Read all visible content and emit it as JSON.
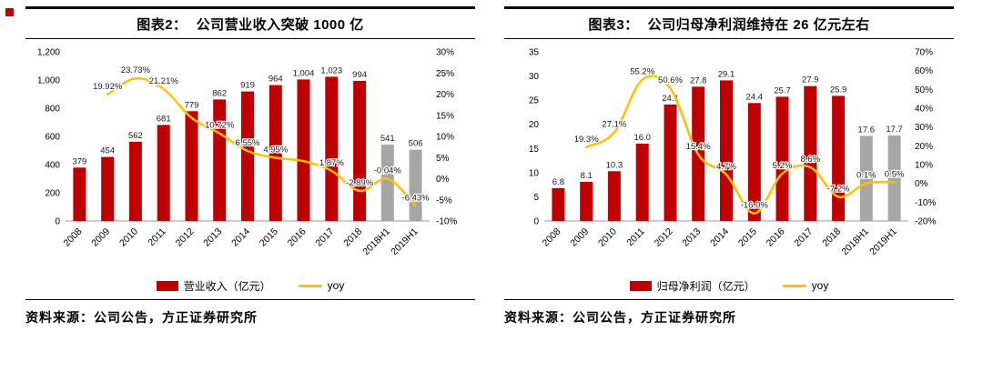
{
  "page": {
    "background": "#ffffff",
    "corner_marker_color": "#c00000"
  },
  "colors": {
    "bar_red": "#c00000",
    "bar_gray": "#a6a6a6",
    "line_yellow": "#ffc000",
    "axis_line": "#9a9a9a"
  },
  "panels": [
    {
      "title_prefix": "图表2：",
      "title": "公司营业收入突破 1000 亿",
      "legend": [
        {
          "swatch": "bar",
          "label": "营业收入（亿元）"
        },
        {
          "swatch": "line",
          "label": "yoy"
        }
      ],
      "source": "资料来源：公司公告，方正证券研究所"
    },
    {
      "title_prefix": "图表3：",
      "title": "公司归母净利润维持在 26 亿元左右",
      "legend": [
        {
          "swatch": "bar",
          "label": "归母净利润（亿元）"
        },
        {
          "swatch": "line",
          "label": "yoy"
        }
      ],
      "source": "资料来源：公司公告，方正证券研究所"
    }
  ],
  "chart_data": [
    {
      "type": "bar+line",
      "title": "公司营业收入突破 1000 亿",
      "categories": [
        "2008",
        "2009",
        "2010",
        "2011",
        "2012",
        "2013",
        "2014",
        "2015",
        "2016",
        "2017",
        "2018",
        "2018H1",
        "2019H1"
      ],
      "series": [
        {
          "name": "营业收入（亿元）",
          "kind": "bar",
          "axis": "left",
          "values": [
            379,
            454,
            562,
            681,
            779,
            862,
            919,
            964,
            1004,
            1023,
            994,
            541,
            506
          ],
          "value_labels": [
            "379",
            "454",
            "562",
            "681",
            "779",
            "862",
            "919",
            "964",
            "1,004",
            "1,023",
            "994",
            "541",
            "506"
          ],
          "bar_colors": [
            "#c00000",
            "#c00000",
            "#c00000",
            "#c00000",
            "#c00000",
            "#c00000",
            "#c00000",
            "#c00000",
            "#c00000",
            "#c00000",
            "#c00000",
            "#a6a6a6",
            "#a6a6a6"
          ]
        },
        {
          "name": "yoy",
          "kind": "line",
          "axis": "right",
          "line_color": "#ffc000",
          "values": [
            null,
            19.92,
            23.73,
            21.21,
            14.39,
            10.72,
            6.55,
            4.95,
            4.15,
            1.87,
            -2.89,
            -0.04,
            -6.43
          ],
          "point_labels": [
            null,
            "19.92%",
            "23.73%",
            "21.21%",
            null,
            "10.72%",
            "6.55%",
            "4.95%",
            null,
            "1.87%",
            "-2.89%",
            "-0.04%",
            "-6.43%"
          ],
          "label_positions": [
            null,
            "above",
            "above",
            "above",
            null,
            "above",
            "above",
            "above",
            null,
            "above",
            "above",
            "above",
            "above"
          ]
        }
      ],
      "left_axis": {
        "min": 0,
        "max": 1200,
        "ticks": [
          "0",
          "200",
          "400",
          "600",
          "800",
          "1,000",
          "1,200"
        ]
      },
      "right_axis": {
        "min": -10,
        "max": 30,
        "ticks": [
          "-10%",
          "-5%",
          "0%",
          "5%",
          "10%",
          "15%",
          "20%",
          "25%",
          "30%"
        ]
      },
      "legend_position": "bottom",
      "grid": false
    },
    {
      "type": "bar+line",
      "title": "公司归母净利润维持在 26 亿元左右",
      "categories": [
        "2008",
        "2009",
        "2010",
        "2011",
        "2012",
        "2013",
        "2014",
        "2015",
        "2016",
        "2017",
        "2018",
        "2018H1",
        "2019H1"
      ],
      "series": [
        {
          "name": "归母净利润（亿元）",
          "kind": "bar",
          "axis": "left",
          "values": [
            6.8,
            8.1,
            10.3,
            16.0,
            24.1,
            27.8,
            29.1,
            24.4,
            25.7,
            27.9,
            25.9,
            17.6,
            17.7
          ],
          "value_labels": [
            "6.8",
            "8.1",
            "10.3",
            "16.0",
            "24.1",
            "27.8",
            "29.1",
            "24.4",
            "25.7",
            "27.9",
            "25.9",
            "17.6",
            "17.7"
          ],
          "bar_colors": [
            "#c00000",
            "#c00000",
            "#c00000",
            "#c00000",
            "#c00000",
            "#c00000",
            "#c00000",
            "#c00000",
            "#c00000",
            "#c00000",
            "#c00000",
            "#a6a6a6",
            "#a6a6a6"
          ]
        },
        {
          "name": "yoy",
          "kind": "line",
          "axis": "right",
          "line_color": "#ffc000",
          "values": [
            null,
            19.3,
            27.1,
            55.2,
            50.6,
            15.4,
            4.7,
            -16.0,
            5.2,
            8.6,
            -7.2,
            0.1,
            0.5
          ],
          "point_labels": [
            null,
            "19.3%",
            "27.1%",
            "55.2%",
            "50.6%",
            "15.4%",
            "4.7%",
            "-16.0%",
            "5.2%",
            "8.6%",
            "-7.2%",
            "0.1%",
            "0.5%"
          ],
          "label_positions": [
            null,
            "above",
            "above",
            "above",
            "above",
            "above",
            "above",
            "above",
            "above",
            "above",
            "above",
            "above",
            "above"
          ]
        }
      ],
      "left_axis": {
        "min": 0,
        "max": 35,
        "ticks": [
          "0",
          "5",
          "10",
          "15",
          "20",
          "25",
          "30",
          "35"
        ]
      },
      "right_axis": {
        "min": -20,
        "max": 70,
        "ticks": [
          "-20%",
          "-10%",
          "0%",
          "10%",
          "20%",
          "30%",
          "40%",
          "50%",
          "60%",
          "70%"
        ]
      },
      "legend_position": "bottom",
      "grid": false
    }
  ]
}
